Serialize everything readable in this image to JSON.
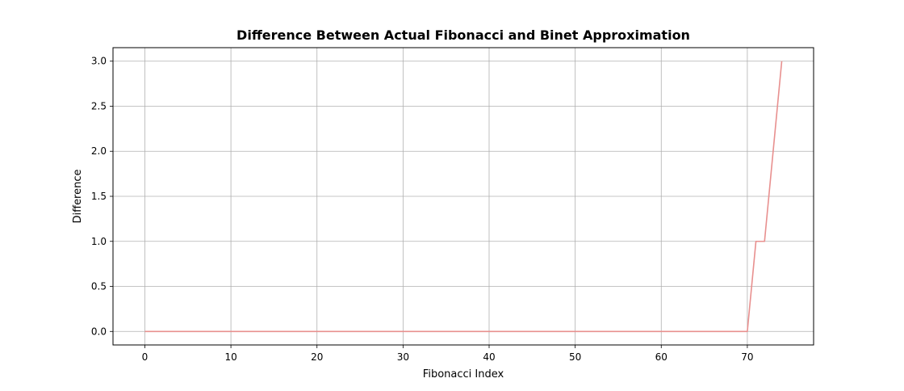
{
  "chart_data": {
    "type": "line",
    "title": "Difference Between Actual Fibonacci and Binet Approximation",
    "xlabel": "Fibonacci Index",
    "ylabel": "Difference",
    "xlim": [
      -3.7,
      77.7
    ],
    "ylim": [
      -0.15,
      3.15
    ],
    "xticks": [
      0,
      10,
      20,
      30,
      40,
      50,
      60,
      70
    ],
    "yticks": [
      0.0,
      0.5,
      1.0,
      1.5,
      2.0,
      2.5,
      3.0
    ],
    "xtick_labels": [
      "0",
      "10",
      "20",
      "30",
      "40",
      "50",
      "60",
      "70"
    ],
    "ytick_labels": [
      "0.0",
      "0.5",
      "1.0",
      "1.5",
      "2.0",
      "2.5",
      "3.0"
    ],
    "grid": true,
    "series": [
      {
        "color": "#e8908f",
        "x": [
          0,
          1,
          2,
          3,
          4,
          5,
          6,
          7,
          8,
          9,
          10,
          11,
          12,
          13,
          14,
          15,
          16,
          17,
          18,
          19,
          20,
          21,
          22,
          23,
          24,
          25,
          26,
          27,
          28,
          29,
          30,
          31,
          32,
          33,
          34,
          35,
          36,
          37,
          38,
          39,
          40,
          41,
          42,
          43,
          44,
          45,
          46,
          47,
          48,
          49,
          50,
          51,
          52,
          53,
          54,
          55,
          56,
          57,
          58,
          59,
          60,
          61,
          62,
          63,
          64,
          65,
          66,
          67,
          68,
          69,
          70,
          71,
          72,
          73,
          74
        ],
        "values": [
          0,
          0,
          0,
          0,
          0,
          0,
          0,
          0,
          0,
          0,
          0,
          0,
          0,
          0,
          0,
          0,
          0,
          0,
          0,
          0,
          0,
          0,
          0,
          0,
          0,
          0,
          0,
          0,
          0,
          0,
          0,
          0,
          0,
          0,
          0,
          0,
          0,
          0,
          0,
          0,
          0,
          0,
          0,
          0,
          0,
          0,
          0,
          0,
          0,
          0,
          0,
          0,
          0,
          0,
          0,
          0,
          0,
          0,
          0,
          0,
          0,
          0,
          0,
          0,
          0,
          0,
          0,
          0,
          0,
          0,
          0,
          1,
          1,
          2,
          3
        ]
      }
    ]
  }
}
